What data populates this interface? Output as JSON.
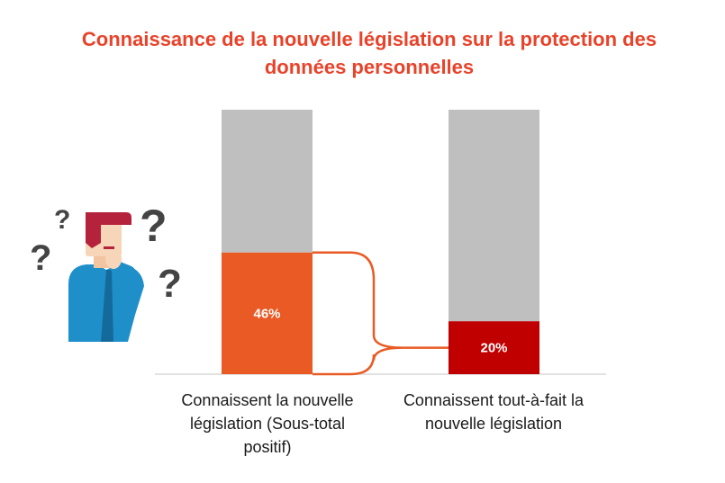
{
  "title": {
    "line1": "Connaissance de la nouvelle législation sur la protection des",
    "line2": "données personnelles"
  },
  "chart_data": {
    "type": "bar",
    "categories": [
      "Connaissent la nouvelle législation (Sous-total positif)",
      "Connaissent tout-à-fait la nouvelle législation"
    ],
    "category_lines": [
      [
        "Connaissent la nouvelle",
        "législation (Sous-total",
        "positif)"
      ],
      [
        "Connaissent tout-à-fait la",
        "nouvelle législation"
      ]
    ],
    "values": [
      46,
      20
    ],
    "value_labels": [
      "46%",
      "20%"
    ],
    "ylim": [
      0,
      100
    ],
    "stacked_remainder": true,
    "colors": {
      "bars": [
        "#e95a25",
        "#c00000"
      ],
      "remainder": "#bfbfbf",
      "connector": "#e95a25",
      "axis": "#d9d9d9",
      "title": "#e8432a"
    }
  },
  "illustration": {
    "icon": "confused-person-icon",
    "question_marks": [
      "?",
      "?",
      "?",
      "?"
    ],
    "colors": {
      "hair": "#b5223b",
      "skin": "#f6d5b8",
      "shirt": "#1f8fc9",
      "shirt_dark": "#156a9c",
      "question": "#444444"
    }
  }
}
